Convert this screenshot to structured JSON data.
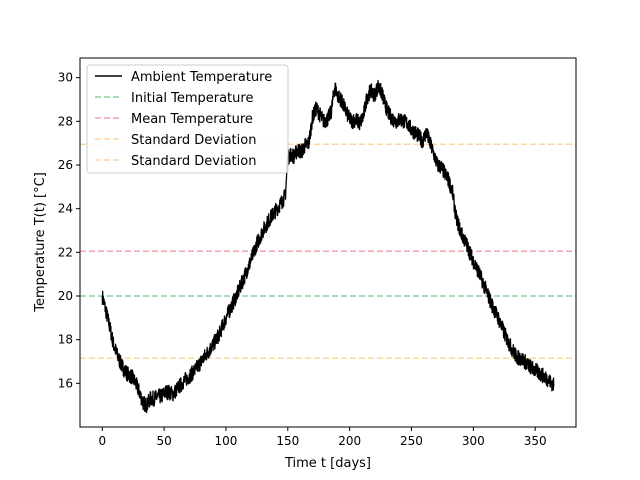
{
  "chart_data": {
    "type": "line",
    "xlabel": "Time t [days]",
    "ylabel": "Temperature T(t) [°C]",
    "xlim": [
      -18,
      383
    ],
    "ylim": [
      14.0,
      30.9
    ],
    "xticks": [
      0,
      50,
      100,
      150,
      200,
      250,
      300,
      350
    ],
    "yticks": [
      16,
      18,
      20,
      22,
      24,
      26,
      28,
      30
    ],
    "grid": false,
    "legend_position": "top-left",
    "series": [
      {
        "name": "Ambient Temperature",
        "color": "#000000",
        "style": "solid",
        "noise": 0.35,
        "x": [
          0,
          3,
          6,
          9,
          12,
          15,
          18,
          21,
          24,
          27,
          30,
          33,
          36,
          39,
          42,
          45,
          48,
          51,
          54,
          57,
          60,
          63,
          66,
          70,
          75,
          80,
          85,
          90,
          95,
          100,
          105,
          110,
          115,
          120,
          125,
          130,
          135,
          140,
          145,
          148,
          150,
          152,
          155,
          158,
          161,
          164,
          167,
          170,
          173,
          176,
          179,
          182,
          185,
          188,
          190,
          193,
          196,
          199,
          202,
          205,
          208,
          211,
          214,
          217,
          220,
          223,
          226,
          229,
          232,
          235,
          238,
          241,
          244,
          247,
          250,
          253,
          256,
          259,
          262,
          265,
          268,
          271,
          274,
          277,
          280,
          283,
          286,
          290,
          295,
          300,
          305,
          310,
          315,
          320,
          325,
          330,
          335,
          340,
          345,
          350,
          355,
          360,
          365
        ],
        "y": [
          20.0,
          19.3,
          18.6,
          17.8,
          17.3,
          16.9,
          16.6,
          16.4,
          16.3,
          16.0,
          15.6,
          15.1,
          15.0,
          15.3,
          15.3,
          15.4,
          15.4,
          15.6,
          15.6,
          15.5,
          15.7,
          15.9,
          16.1,
          16.3,
          16.6,
          17.0,
          17.4,
          17.8,
          18.3,
          19.0,
          19.6,
          20.2,
          20.9,
          21.6,
          22.4,
          23.0,
          23.5,
          23.9,
          24.3,
          24.6,
          26.3,
          26.5,
          26.4,
          26.7,
          26.6,
          26.9,
          27.0,
          28.2,
          28.6,
          28.3,
          28.0,
          28.1,
          28.4,
          29.6,
          29.2,
          29.0,
          28.6,
          28.2,
          28.0,
          28.1,
          27.9,
          28.2,
          29.1,
          29.4,
          29.2,
          29.6,
          29.3,
          28.7,
          28.3,
          28.1,
          28.0,
          28.1,
          28.0,
          27.9,
          27.6,
          27.5,
          27.3,
          27.1,
          27.5,
          27.0,
          26.5,
          26.0,
          25.9,
          25.6,
          25.3,
          24.8,
          23.6,
          22.9,
          22.3,
          21.6,
          21.0,
          20.3,
          19.6,
          19.0,
          18.3,
          17.7,
          17.2,
          17.1,
          16.8,
          16.6,
          16.4,
          16.2,
          15.9
        ]
      },
      {
        "name": "Initial Temperature",
        "color": "#8fcf9b",
        "style": "dashed",
        "y": 20.0
      },
      {
        "name": "Mean Temperature",
        "color": "#f4a4ae",
        "style": "dashed",
        "y": 22.05
      },
      {
        "name": "Standard Deviation",
        "color": "#fcd8a0",
        "style": "dashed",
        "y": 26.95
      },
      {
        "name": "Standard Deviation",
        "color": "#fcd8a0",
        "style": "dashed",
        "y": 17.15
      }
    ]
  }
}
